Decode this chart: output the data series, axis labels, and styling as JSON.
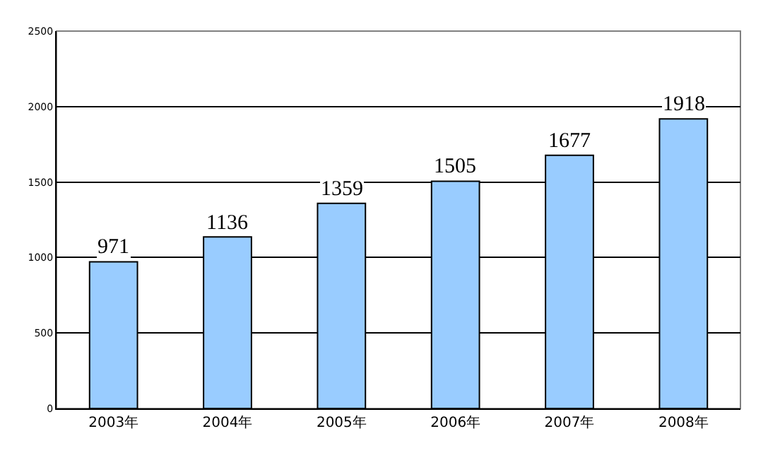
{
  "chart_data": {
    "type": "bar",
    "categories": [
      "2003年",
      "2004年",
      "2005年",
      "2006年",
      "2007年",
      "2008年"
    ],
    "values": [
      971,
      1136,
      1359,
      1505,
      1677,
      1918
    ],
    "color": "#99ccff",
    "ylim": [
      0,
      2500
    ],
    "yticks": [
      0,
      500,
      1000,
      1500,
      2000,
      2500
    ],
    "grid": "y",
    "data_labels": true,
    "legend": false
  }
}
